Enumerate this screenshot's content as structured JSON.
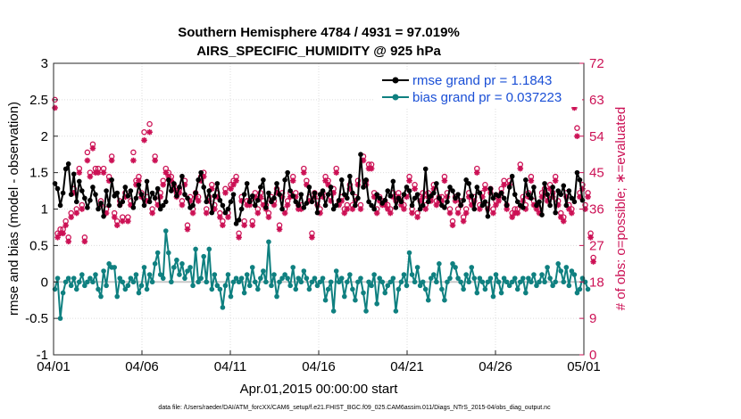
{
  "chart_data": {
    "type": "line",
    "title_line1": "Southern Hemisphere 4784 / 4931 = 97.019%",
    "title_line2": "AIRS_SPECIFIC_HUMIDITY @ 925 hPa",
    "xlabel": "Apr.01,2015 00:00:00 start",
    "ylabel_left": "rmse and bias (model - observation)",
    "ylabel_right": "# of obs: o=possible; ∗=evaluated",
    "footnote": "data file: /Users/raeder/DAI/ATM_forcXX/CAM6_setup/f.e21.FHIST_BGC.f09_025.CAM6assim.011/Diags_NTrS_2015-04/obs_diag_output.nc",
    "xlim": [
      0,
      30
    ],
    "ylim_left": [
      -1,
      3
    ],
    "ylim_right": [
      0,
      72
    ],
    "x_ticks": [
      0,
      5,
      10,
      15,
      20,
      25,
      30
    ],
    "x_tick_labels": [
      "04/01",
      "04/06",
      "04/11",
      "04/16",
      "04/21",
      "04/26",
      "05/01"
    ],
    "y_left_ticks": [
      -1,
      -0.5,
      0,
      0.5,
      1,
      1.5,
      2,
      2.5,
      3
    ],
    "y_left_tick_labels": [
      "-1",
      "-0.5",
      "0",
      "0.5",
      "1",
      "1.5",
      "2",
      "2.5",
      "3"
    ],
    "y_right_ticks": [
      0,
      9,
      18,
      27,
      36,
      45,
      54,
      63,
      72
    ],
    "y_right_tick_labels": [
      "0",
      "9",
      "18",
      "27",
      "36",
      "45",
      "54",
      "63",
      "72"
    ],
    "legend": [
      {
        "label": "rmse grand pr = 1.1843",
        "color": "#000000"
      },
      {
        "label": "bias grand pr = 0.037223",
        "color": "#0f8080"
      }
    ],
    "colors": {
      "rmse": "#000000",
      "bias": "#0f8080",
      "obs": "#cc1155",
      "zero_line": "#c8c8c8"
    },
    "rmse": [
      1.35,
      1.28,
      1.05,
      1.22,
      1.55,
      1.62,
      1.2,
      1.48,
      1.1,
      1.38,
      1.25,
      1.15,
      1.02,
      1.12,
      1.3,
      1.2,
      1.0,
      1.08,
      0.9,
      1.25,
      1.05,
      1.4,
      1.18,
      1.22,
      1.05,
      1.1,
      1.3,
      1.18,
      1.25,
      1.02,
      1.15,
      1.33,
      1.2,
      1.05,
      1.38,
      1.1,
      1.22,
      1.15,
      1.28,
      1.0,
      1.05,
      1.1,
      1.4,
      1.25,
      1.35,
      1.18,
      1.3,
      1.45,
      1.2,
      1.15,
      1.02,
      1.05,
      1.22,
      1.4,
      1.5,
      1.3,
      1.1,
      1.25,
      0.95,
      1.18,
      1.35,
      1.12,
      1.05,
      0.95,
      1.0,
      1.1,
      1.2,
      0.8,
      0.85,
      1.0,
      1.2,
      1.35,
      1.1,
      1.18,
      1.05,
      1.12,
      1.3,
      1.4,
      1.02,
      1.22,
      1.1,
      1.15,
      1.35,
      1.2,
      1.0,
      1.4,
      1.5,
      1.25,
      1.18,
      1.1,
      1.05,
      1.2,
      1.02,
      1.08,
      1.3,
      1.1,
      1.22,
      0.95,
      1.2,
      1.25,
      1.05,
      1.2,
      1.3,
      1.0,
      1.05,
      1.12,
      1.4,
      1.2,
      1.15,
      1.45,
      1.22,
      1.05,
      1.15,
      1.75,
      1.3,
      1.4,
      1.1,
      1.05,
      1.0,
      1.2,
      1.15,
      1.08,
      1.12,
      1.25,
      1.18,
      1.38,
      1.02,
      1.15,
      1.1,
      1.2,
      1.3,
      1.25,
      1.05,
      1.15,
      1.2,
      1.0,
      1.05,
      1.55,
      1.1,
      1.18,
      1.22,
      1.35,
      1.15,
      1.05,
      1.02,
      1.1,
      1.3,
      1.25,
      1.15,
      1.2,
      1.05,
      1.12,
      1.4,
      1.35,
      1.18,
      1.0,
      1.3,
      1.22,
      1.05,
      1.1,
      0.9,
      1.28,
      1.15,
      1.2,
      1.18,
      1.22,
      1.15,
      1.05,
      1.3,
      1.45,
      1.2,
      1.1,
      1.05,
      1.02,
      1.4,
      1.2,
      1.15,
      1.3,
      1.05,
      1.1,
      0.92,
      1.35,
      1.2,
      1.05,
      1.3,
      0.95,
      1.25,
      1.2,
      1.32,
      1.05,
      1.25,
      1.15,
      1.1,
      1.5,
      1.4,
      1.12
    ],
    "bias": [
      -0.1,
      0.05,
      -0.5,
      -0.15,
      0.0,
      0.05,
      -0.05,
      0.05,
      -0.1,
      0.0,
      0.1,
      -0.05,
      0.0,
      0.05,
      0.0,
      0.1,
      -0.1,
      -0.2,
      0.15,
      -0.05,
      0.25,
      0.2,
      0.2,
      -0.2,
      0.05,
      0.0,
      -0.1,
      -0.05,
      0.05,
      0.0,
      0.1,
      -0.15,
      -0.05,
      0.2,
      -0.1,
      0.1,
      0.0,
      0.25,
      0.4,
      0.1,
      0.05,
      0.7,
      0.4,
      0.0,
      0.2,
      0.3,
      0.1,
      0.25,
      0.05,
      0.15,
      0.2,
      -0.05,
      0.45,
      0.0,
      0.05,
      0.35,
      0.0,
      0.45,
      -0.1,
      0.1,
      -0.05,
      -0.1,
      -0.35,
      -0.05,
      0.1,
      -0.2,
      0.0,
      0.05,
      0.0,
      0.05,
      -0.15,
      0.1,
      -0.05,
      0.2,
      0.0,
      -0.1,
      0.05,
      0.15,
      0.0,
      0.55,
      -0.05,
      0.1,
      -0.2,
      0.0,
      0.05,
      0.1,
      0.05,
      -0.05,
      0.2,
      -0.1,
      0.05,
      0.0,
      0.15,
      0.05,
      -0.1,
      0.0,
      0.05,
      -0.05,
      0.0,
      0.05,
      -0.25,
      -0.1,
      0.0,
      -0.4,
      0.15,
      0.0,
      0.05,
      -0.2,
      0.0,
      0.1,
      -0.1,
      -0.25,
      0.0,
      0.05,
      -0.15,
      -0.4,
      0.0,
      -0.05,
      0.1,
      -0.3,
      0.05,
      0.0,
      -0.15,
      -0.05,
      0.0,
      0.05,
      -0.4,
      -0.1,
      0.0,
      0.1,
      -0.05,
      0.4,
      0.1,
      0.0,
      0.2,
      -0.05,
      0.0,
      -0.1,
      -0.25,
      0.05,
      0.1,
      0.0,
      0.25,
      -0.1,
      -0.25,
      0.0,
      0.05,
      0.25,
      0.2,
      0.05,
      0.0,
      -0.1,
      0.1,
      0.0,
      0.2,
      0.05,
      -0.15,
      0.05,
      0.0,
      -0.1,
      0.0,
      0.05,
      -0.2,
      0.1,
      0.0,
      -0.15,
      0.05,
      0.0,
      -0.05,
      0.0,
      0.05,
      -0.1,
      0.0,
      0.05,
      -0.15,
      0.05,
      0.0,
      0.1,
      -0.05,
      0.0,
      0.1,
      0.0,
      0.2,
      0.05,
      -0.05,
      0.0,
      0.25,
      0.15,
      0.0,
      0.2,
      -0.05,
      0.15,
      0.1,
      -0.15,
      -0.1,
      0.05,
      0.0,
      -0.1
    ],
    "obs_possible": [
      63,
      30,
      31,
      31,
      33,
      29,
      35,
      41,
      36,
      46,
      37,
      29,
      50,
      45,
      52,
      46,
      46,
      38,
      46,
      36,
      44,
      49,
      35,
      33,
      38,
      34,
      40,
      34,
      38,
      50,
      43,
      44,
      40,
      55,
      39,
      57,
      36,
      49,
      38,
      40,
      43,
      46,
      45,
      44,
      42,
      40,
      41,
      38,
      43,
      32,
      39,
      36,
      40,
      39,
      44,
      45,
      36,
      39,
      42,
      37,
      40,
      35,
      33,
      41,
      35,
      42,
      43,
      44,
      30,
      39,
      33,
      38,
      38,
      33,
      40,
      36,
      40,
      38,
      37,
      35,
      39,
      38,
      41,
      32,
      40,
      36,
      38,
      40,
      44,
      40,
      37,
      37,
      46,
      43,
      39,
      30,
      40,
      38,
      36,
      40,
      44,
      43,
      39,
      41,
      46,
      38,
      39,
      36,
      37,
      42,
      37,
      39,
      43,
      37,
      49,
      43,
      47,
      47,
      40,
      36,
      39,
      38,
      38,
      37,
      36,
      40,
      39,
      40,
      38,
      37,
      40,
      44,
      36,
      42,
      35,
      39,
      40,
      37,
      40,
      39,
      42,
      38,
      39,
      39,
      44,
      40,
      36,
      33,
      39,
      36,
      38,
      34,
      36,
      40,
      38,
      39,
      46,
      37,
      40,
      42,
      37,
      41,
      36,
      38,
      39,
      41,
      43,
      37,
      43,
      35,
      36,
      36,
      47,
      39,
      37,
      40,
      44,
      38,
      37,
      36,
      40,
      41,
      39,
      42,
      40,
      44,
      38,
      35,
      34,
      40,
      37,
      36,
      66,
      56,
      40,
      42,
      37,
      40,
      30,
      24
    ],
    "obs_evaluated": [
      61,
      29,
      30,
      30,
      32,
      28,
      34,
      40,
      35,
      45,
      36,
      28,
      48,
      44,
      51,
      45,
      45,
      37,
      45,
      35,
      43,
      48,
      34,
      32,
      37,
      33,
      39,
      33,
      37,
      48,
      42,
      43,
      39,
      53,
      38,
      55,
      35,
      48,
      37,
      39,
      42,
      45,
      44,
      43,
      41,
      39,
      40,
      37,
      42,
      31,
      38,
      35,
      39,
      38,
      43,
      44,
      35,
      38,
      41,
      36,
      39,
      34,
      32,
      40,
      34,
      41,
      42,
      43,
      29,
      38,
      32,
      37,
      37,
      32,
      39,
      35,
      39,
      37,
      36,
      34,
      38,
      37,
      40,
      31,
      39,
      35,
      37,
      39,
      43,
      39,
      36,
      36,
      45,
      42,
      38,
      29,
      39,
      37,
      35,
      39,
      43,
      42,
      38,
      40,
      45,
      37,
      38,
      35,
      36,
      41,
      36,
      38,
      42,
      36,
      48,
      42,
      46,
      46,
      39,
      35,
      38,
      37,
      37,
      36,
      35,
      39,
      38,
      39,
      37,
      36,
      39,
      43,
      35,
      41,
      34,
      38,
      39,
      36,
      39,
      38,
      41,
      37,
      38,
      38,
      43,
      39,
      35,
      32,
      38,
      35,
      37,
      33,
      35,
      39,
      37,
      38,
      45,
      36,
      39,
      41,
      36,
      40,
      35,
      37,
      38,
      40,
      42,
      36,
      42,
      34,
      35,
      35,
      46,
      38,
      36,
      39,
      43,
      37,
      36,
      35,
      39,
      40,
      38,
      41,
      39,
      43,
      37,
      34,
      33,
      39,
      36,
      35,
      61,
      54,
      39,
      41,
      36,
      39,
      29,
      23
    ]
  }
}
